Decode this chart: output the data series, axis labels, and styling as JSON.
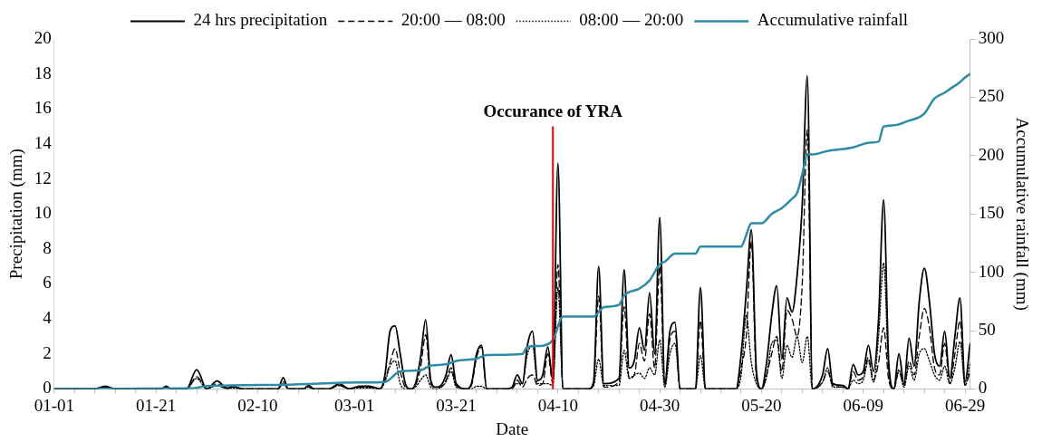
{
  "chart_data": {
    "type": "line",
    "xlabel": "Date",
    "ylabel": "Precipitation (mm)",
    "y2label": "Accumulative rainfall (mm)",
    "xlim": [
      "--01-01",
      "--06-30"
    ],
    "xticks": [
      {
        "value": "--01-01",
        "label": "01-01"
      },
      {
        "value": "--01-05",
        "label": null
      },
      {
        "value": "--01-09",
        "label": null
      },
      {
        "value": "--01-13",
        "label": null
      },
      {
        "value": "--01-17",
        "label": null
      },
      {
        "value": "--01-21",
        "label": "01-21"
      },
      {
        "value": "--01-25",
        "label": null
      },
      {
        "value": "--01-29",
        "label": null
      },
      {
        "value": "--02-02",
        "label": null
      },
      {
        "value": "--02-06",
        "label": null
      },
      {
        "value": "--02-10",
        "label": "02-10"
      },
      {
        "value": "--02-14",
        "label": null
      },
      {
        "value": "--02-18",
        "label": null
      },
      {
        "value": "--02-22",
        "label": null
      },
      {
        "value": "--02-26",
        "label": null
      },
      {
        "value": "--03-01",
        "label": "03-01"
      },
      {
        "value": "--03-05",
        "label": null
      },
      {
        "value": "--03-09",
        "label": null
      },
      {
        "value": "--03-13",
        "label": null
      },
      {
        "value": "--03-17",
        "label": null
      },
      {
        "value": "--03-21",
        "label": "03-21"
      },
      {
        "value": "--03-25",
        "label": null
      },
      {
        "value": "--03-29",
        "label": null
      },
      {
        "value": "--04-02",
        "label": null
      },
      {
        "value": "--04-06",
        "label": null
      },
      {
        "value": "--04-10",
        "label": "04-10"
      },
      {
        "value": "--04-14",
        "label": null
      },
      {
        "value": "--04-18",
        "label": null
      },
      {
        "value": "--04-22",
        "label": null
      },
      {
        "value": "--04-26",
        "label": null
      },
      {
        "value": "--04-30",
        "label": "04-30"
      },
      {
        "value": "--05-04",
        "label": null
      },
      {
        "value": "--05-08",
        "label": null
      },
      {
        "value": "--05-12",
        "label": null
      },
      {
        "value": "--05-16",
        "label": null
      },
      {
        "value": "--05-20",
        "label": "05-20"
      },
      {
        "value": "--05-24",
        "label": null
      },
      {
        "value": "--05-28",
        "label": null
      },
      {
        "value": "--06-01",
        "label": null
      },
      {
        "value": "--06-05",
        "label": null
      },
      {
        "value": "--06-09",
        "label": "06-09"
      },
      {
        "value": "--06-13",
        "label": null
      },
      {
        "value": "--06-17",
        "label": null
      },
      {
        "value": "--06-21",
        "label": null
      },
      {
        "value": "--06-25",
        "label": null
      },
      {
        "value": "--06-29",
        "label": "06-29"
      }
    ],
    "ylim": [
      0,
      20
    ],
    "yticks": [
      0,
      2,
      4,
      6,
      8,
      10,
      12,
      14,
      16,
      18,
      20
    ],
    "y2lim": [
      0,
      300
    ],
    "y2ticks": [
      0,
      50,
      100,
      150,
      200,
      250,
      300
    ],
    "grid": false,
    "legend": "top",
    "marker": "none",
    "x": [
      "--01-01",
      "--01-09",
      "--01-11",
      "--01-13",
      "--01-22",
      "--01-23",
      "--01-24",
      "--01-27",
      "--01-29",
      "--01-31",
      "--02-02",
      "--02-04",
      "--02-05",
      "--02-07",
      "--02-14",
      "--02-15",
      "--02-16",
      "--02-19",
      "--02-20",
      "--02-21",
      "--02-24",
      "--02-26",
      "--02-28",
      "--03-02",
      "--03-04",
      "--03-06",
      "--03-07",
      "--03-08",
      "--03-09",
      "--03-10",
      "--03-11",
      "--03-12",
      "--03-13",
      "--03-14",
      "--03-15",
      "--03-16",
      "--03-17",
      "--03-18",
      "--03-19",
      "--03-20",
      "--03-21",
      "--03-23",
      "--03-24",
      "--03-25",
      "--03-26",
      "--03-27",
      "--03-31",
      "--04-01",
      "--04-02",
      "--04-03",
      "--04-04",
      "--04-05",
      "--04-06",
      "--04-07",
      "--04-08",
      "--04-09",
      "--04-10",
      "--04-11",
      "--04-16",
      "--04-17",
      "--04-18",
      "--04-19",
      "--04-22",
      "--04-23",
      "--04-24",
      "--04-25",
      "--04-26",
      "--04-27",
      "--04-28",
      "--04-29",
      "--04-30",
      "--05-01",
      "--05-02",
      "--05-03",
      "--05-04",
      "--05-07",
      "--05-08",
      "--05-09",
      "--05-15",
      "--05-16",
      "--05-17",
      "--05-18",
      "--05-19",
      "--05-20",
      "--05-21",
      "--05-22",
      "--05-23",
      "--05-24",
      "--05-25",
      "--05-26",
      "--05-27",
      "--05-28",
      "--05-29",
      "--05-30",
      "--06-01",
      "--06-02",
      "--06-03",
      "--06-05",
      "--06-06",
      "--06-07",
      "--06-08",
      "--06-09",
      "--06-10",
      "--06-11",
      "--06-12",
      "--06-13",
      "--06-14",
      "--06-15",
      "--06-16",
      "--06-17",
      "--06-18",
      "--06-19",
      "--06-20",
      "--06-21",
      "--06-22",
      "--06-23",
      "--06-24",
      "--06-25",
      "--06-26",
      "--06-27",
      "--06-28",
      "--06-29",
      "--06-30"
    ],
    "series": [
      {
        "name": "24 hrs precipitation",
        "color": "#000000",
        "line_style": "solid",
        "values": [
          0,
          0,
          0.15,
          0,
          0,
          0.15,
          0,
          0,
          1.1,
          0,
          0.45,
          0.05,
          0.15,
          0,
          0,
          0.65,
          0,
          0,
          0.2,
          0,
          0,
          0.3,
          0,
          0.15,
          0.15,
          0,
          0.8,
          3.3,
          3.6,
          2.0,
          0.3,
          0,
          0.3,
          1.8,
          3.95,
          0.5,
          0.1,
          0.2,
          0.8,
          1.95,
          0.3,
          0,
          0.3,
          2.0,
          2.5,
          0,
          0,
          0.1,
          0.8,
          0.3,
          2.5,
          3.3,
          0.5,
          0.8,
          2.4,
          0.5,
          12.9,
          0,
          0,
          0.4,
          7.0,
          0.3,
          0.6,
          6.8,
          1.2,
          1.6,
          3.5,
          2.2,
          5.5,
          2.0,
          9.8,
          0.3,
          3.3,
          3.8,
          0,
          0,
          5.8,
          0,
          0,
          2.0,
          5.5,
          9.1,
          1.0,
          0,
          1.5,
          4.2,
          5.9,
          1.7,
          5.2,
          4.4,
          6.5,
          10.5,
          17.9,
          0,
          0.8,
          2.3,
          0.3,
          0.2,
          0,
          1.4,
          0.8,
          1.0,
          2.5,
          1.0,
          4.0,
          10.8,
          1.5,
          0,
          2.0,
          0.3,
          2.9,
          1.3,
          5.0,
          6.9,
          5.0,
          2.0,
          1.3,
          3.3,
          0.6,
          3.0,
          5.2,
          0.4,
          2.6
        ]
      },
      {
        "name": "20:00 — 08:00",
        "color": "#000000",
        "line_style": "dashed",
        "values": [
          0,
          0,
          0.1,
          0,
          0,
          0.1,
          0,
          0,
          0.7,
          0,
          0.3,
          0,
          0.1,
          0,
          0,
          0.4,
          0,
          0,
          0.1,
          0,
          0,
          0.2,
          0,
          0.1,
          0.1,
          0,
          0.5,
          1.5,
          2.3,
          1.0,
          0.1,
          0,
          0.2,
          1.2,
          3.1,
          0.3,
          0.1,
          0.1,
          0.5,
          1.2,
          0.2,
          0,
          0.2,
          1.8,
          2.4,
          0,
          0,
          0,
          0.5,
          0.1,
          0.6,
          0.8,
          0.2,
          0.3,
          2.0,
          0.3,
          7.1,
          0,
          0,
          0.2,
          5.3,
          0.1,
          0.4,
          4.7,
          0.6,
          0.8,
          2.6,
          1.6,
          4.3,
          1.2,
          7.0,
          0.2,
          2.8,
          3.3,
          0,
          0,
          3.9,
          0,
          0,
          1.2,
          3.0,
          8.4,
          0.6,
          0,
          0.8,
          2.0,
          3.0,
          1.0,
          4.5,
          4.0,
          3.0,
          6.0,
          14.8,
          0,
          0.4,
          1.0,
          0.2,
          0.1,
          0,
          1.0,
          0.5,
          0.7,
          1.8,
          0.5,
          1.5,
          3.5,
          0.5,
          0,
          1.0,
          0.2,
          1.6,
          0.8,
          3.0,
          4.6,
          3.5,
          1.2,
          0.8,
          2.6,
          0.3,
          2.0,
          3.9,
          0.2,
          1.0
        ]
      },
      {
        "name": "08:00 — 20:00",
        "color": "#000000",
        "line_style": "dotted",
        "values": [
          0,
          0,
          0.05,
          0,
          0,
          0.05,
          0,
          0,
          0.6,
          0,
          0.2,
          0,
          0.05,
          0,
          0,
          0.3,
          0,
          0,
          0.1,
          0,
          0,
          0.2,
          0,
          0.05,
          0.05,
          0,
          0.4,
          1.3,
          1.6,
          0.3,
          0,
          0,
          0.1,
          0.5,
          0.8,
          0.1,
          0,
          0.1,
          0.4,
          1.0,
          0.1,
          0,
          0,
          0.15,
          0.15,
          0,
          0,
          0.1,
          0.3,
          0.3,
          2.0,
          2.5,
          0.3,
          0.3,
          0.3,
          0.2,
          5.8,
          0,
          0,
          0.2,
          1.7,
          0.2,
          0.2,
          2.2,
          0.6,
          0.8,
          0.9,
          0.6,
          1.2,
          0.8,
          2.8,
          0.1,
          2.0,
          2.6,
          0,
          0,
          1.9,
          0,
          0,
          0.8,
          4.2,
          1.5,
          0.3,
          0,
          0.7,
          2.6,
          2.8,
          0.6,
          2.5,
          1.8,
          3.0,
          1.5,
          3.0,
          0,
          0.4,
          1.2,
          0.1,
          0.1,
          0,
          0.5,
          0.3,
          0.5,
          1.6,
          0.4,
          3.0,
          7.2,
          1.0,
          0,
          1.1,
          0.1,
          1.3,
          0.5,
          2.0,
          2.3,
          1.6,
          0.8,
          0.5,
          1.3,
          0.3,
          1.2,
          2.7,
          0.2,
          1.5
        ]
      },
      {
        "name": "Accumulative rainfall",
        "color": "#2e8ba6",
        "line_style": "solid",
        "axis": "y2",
        "x": [
          "--01-01",
          "--01-28",
          "--01-31",
          "--02-15",
          "--03-02",
          "--03-07",
          "--03-10",
          "--03-14",
          "--03-16",
          "--03-19",
          "--03-21",
          "--03-25",
          "--03-27",
          "--04-03",
          "--04-04",
          "--04-07",
          "--04-09",
          "--04-11",
          "--04-17",
          "--04-19",
          "--04-22",
          "--04-23",
          "--04-26",
          "--04-28",
          "--04-30",
          "--05-01",
          "--05-03",
          "--05-07",
          "--05-08",
          "--05-16",
          "--05-17",
          "--05-18",
          "--05-20",
          "--05-22",
          "--05-24",
          "--05-26",
          "--05-27",
          "--05-28",
          "--05-29",
          "--05-30",
          "--06-02",
          "--06-07",
          "--06-10",
          "--06-12",
          "--06-13",
          "--06-15",
          "--06-18",
          "--06-20",
          "--06-21",
          "--06-23",
          "--06-25",
          "--06-26",
          "--06-28",
          "--06-29",
          "--06-30"
        ],
        "values": [
          0,
          0.5,
          2.5,
          3.5,
          5.5,
          6,
          15,
          16,
          20,
          21,
          24,
          26,
          29,
          30,
          36,
          37,
          42,
          62,
          62,
          70,
          72,
          80,
          86,
          93,
          107,
          109,
          116,
          116,
          122,
          122,
          132,
          142,
          142,
          150,
          155,
          163,
          168,
          184,
          201,
          201,
          204,
          207,
          211,
          212,
          225,
          226,
          230,
          233,
          236,
          249,
          254,
          257,
          263,
          267,
          270
        ]
      }
    ],
    "ref_lines": [
      {
        "axis": "x",
        "value": "--04-09",
        "label": "Occurance of YRA",
        "color": "#ff0000"
      }
    ]
  }
}
